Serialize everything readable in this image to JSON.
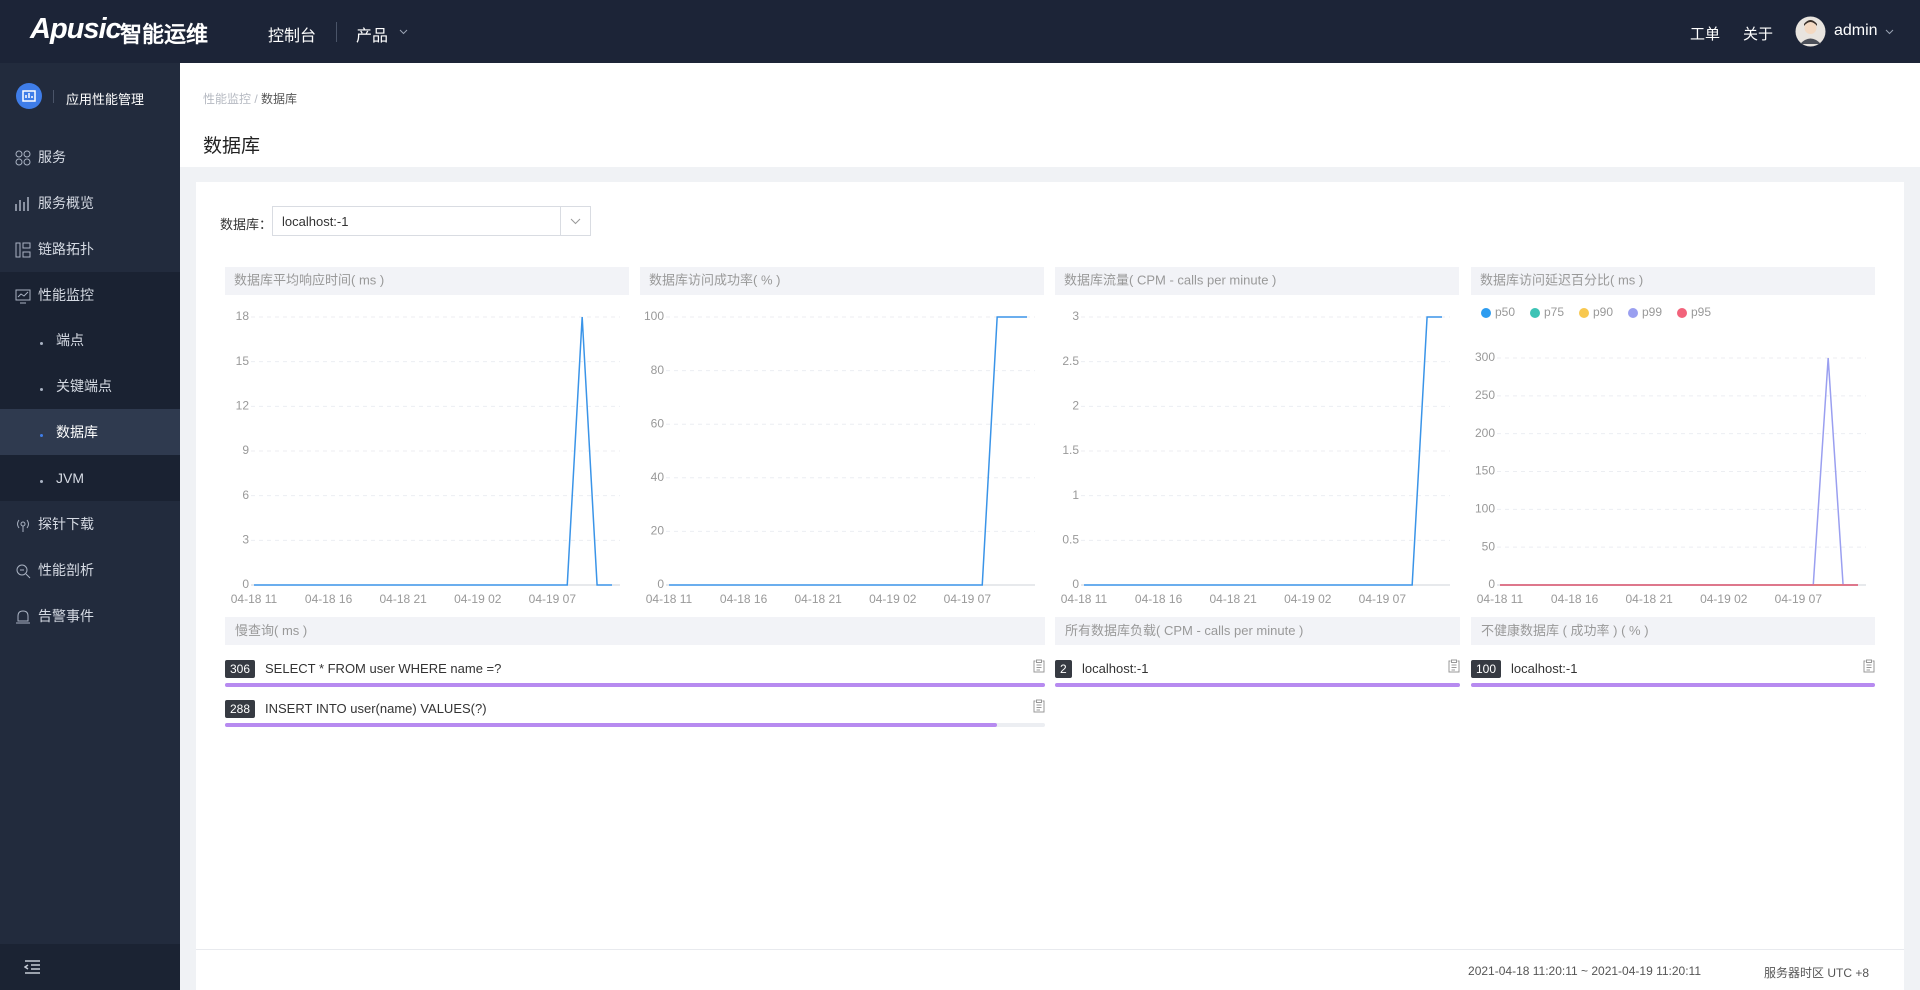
{
  "header": {
    "logo": "Apusic",
    "logo_suffix": "智能运维",
    "nav": [
      "控制台",
      "产品"
    ],
    "links": [
      "工单",
      "关于"
    ],
    "user": "admin"
  },
  "sidebar": {
    "title": "应用性能管理",
    "items": [
      "服务",
      "服务概览",
      "链路拓扑",
      "性能监控",
      "端点",
      "关键端点",
      "数据库",
      "JVM",
      "探针下载",
      "性能剖析",
      "告警事件"
    ]
  },
  "breadcrumb": {
    "parent": "性能监控",
    "separator": "/",
    "current": "数据库"
  },
  "page_title": "数据库",
  "filter": {
    "label": "数据库：",
    "value": "localhost:-1"
  },
  "charts": [
    {
      "type": "line",
      "title": "数据库平均响应时间( ms )",
      "categories": [
        "04-18 11",
        null,
        null,
        null,
        null,
        "04-18 16",
        null,
        null,
        null,
        null,
        "04-18 21",
        null,
        null,
        null,
        null,
        "04-19 02",
        null,
        null,
        null,
        null,
        "04-19 07",
        null,
        null,
        null,
        null
      ],
      "values": [
        0,
        0,
        0,
        0,
        0,
        0,
        0,
        0,
        0,
        0,
        0,
        0,
        0,
        0,
        0,
        0,
        0,
        0,
        0,
        0,
        0,
        0,
        18,
        0,
        0
      ],
      "color": "#3a94e8",
      "ylim": [
        0,
        18
      ],
      "yticks": [
        0,
        3,
        6,
        9,
        12,
        15,
        18
      ],
      "grid": true
    },
    {
      "type": "line",
      "title": "数据库访问成功率( % )",
      "categories": [
        "04-18 11",
        null,
        null,
        null,
        null,
        "04-18 16",
        null,
        null,
        null,
        null,
        "04-18 21",
        null,
        null,
        null,
        null,
        "04-19 02",
        null,
        null,
        null,
        null,
        "04-19 07",
        null,
        null,
        null,
        null
      ],
      "values": [
        0,
        0,
        0,
        0,
        0,
        0,
        0,
        0,
        0,
        0,
        0,
        0,
        0,
        0,
        0,
        0,
        0,
        0,
        0,
        0,
        0,
        0,
        100,
        100,
        100
      ],
      "color": "#3a94e8",
      "ylim": [
        0,
        100
      ],
      "yticks": [
        0,
        20,
        40,
        60,
        80,
        100
      ],
      "grid": true
    },
    {
      "type": "line",
      "title": "数据库流量( CPM - calls per minute )",
      "categories": [
        "04-18 11",
        null,
        null,
        null,
        null,
        "04-18 16",
        null,
        null,
        null,
        null,
        "04-18 21",
        null,
        null,
        null,
        null,
        "04-19 02",
        null,
        null,
        null,
        null,
        "04-19 07",
        null,
        null,
        null,
        null
      ],
      "values": [
        0,
        0,
        0,
        0,
        0,
        0,
        0,
        0,
        0,
        0,
        0,
        0,
        0,
        0,
        0,
        0,
        0,
        0,
        0,
        0,
        0,
        0,
        0,
        3,
        3
      ],
      "color": "#3a94e8",
      "ylim": [
        0,
        3
      ],
      "yticks": [
        0,
        0.5,
        1,
        1.5,
        2,
        2.5,
        3
      ],
      "grid": true
    },
    {
      "type": "line",
      "title": "数据库访问延迟百分比( ms )",
      "categories": [
        "04-18 11",
        null,
        null,
        null,
        null,
        "04-18 16",
        null,
        null,
        null,
        null,
        "04-18 21",
        null,
        null,
        null,
        null,
        "04-19 02",
        null,
        null,
        null,
        null,
        "04-19 07",
        null,
        null,
        null,
        null
      ],
      "series": [
        {
          "name": "p50",
          "color": "#2d9cf0",
          "values": [
            0,
            0,
            0,
            0,
            0,
            0,
            0,
            0,
            0,
            0,
            0,
            0,
            0,
            0,
            0,
            0,
            0,
            0,
            0,
            0,
            0,
            0,
            0,
            0,
            0
          ]
        },
        {
          "name": "p75",
          "color": "#3cc3b5",
          "values": [
            0,
            0,
            0,
            0,
            0,
            0,
            0,
            0,
            0,
            0,
            0,
            0,
            0,
            0,
            0,
            0,
            0,
            0,
            0,
            0,
            0,
            0,
            0,
            0,
            0
          ]
        },
        {
          "name": "p90",
          "color": "#f8c84f",
          "values": [
            0,
            0,
            0,
            0,
            0,
            0,
            0,
            0,
            0,
            0,
            0,
            0,
            0,
            0,
            0,
            0,
            0,
            0,
            0,
            0,
            0,
            0,
            0,
            0,
            0
          ]
        },
        {
          "name": "p99",
          "color": "#9a9ff0",
          "values": [
            0,
            0,
            0,
            0,
            0,
            0,
            0,
            0,
            0,
            0,
            0,
            0,
            0,
            0,
            0,
            0,
            0,
            0,
            0,
            0,
            0,
            0,
            300,
            0,
            0
          ]
        },
        {
          "name": "p95",
          "color": "#f2637b",
          "values": [
            0,
            0,
            0,
            0,
            0,
            0,
            0,
            0,
            0,
            0,
            0,
            0,
            0,
            0,
            0,
            0,
            0,
            0,
            0,
            0,
            0,
            0,
            0,
            0,
            0
          ]
        }
      ],
      "ylim": [
        0,
        300
      ],
      "yticks": [
        0,
        50,
        100,
        150,
        200,
        250,
        300
      ],
      "grid": true,
      "legend": "top-left"
    }
  ],
  "lists": [
    {
      "title": "慢查询( ms )",
      "color": "#b78af0",
      "items": [
        {
          "value": 306,
          "label": "SELECT * FROM user WHERE name =?"
        },
        {
          "value": 288,
          "label": "INSERT INTO user(name) VALUES(?)"
        }
      ]
    },
    {
      "title": "所有数据库负载( CPM - calls per minute )",
      "color": "#b78af0",
      "items": [
        {
          "value": 2,
          "label": "localhost:-1"
        }
      ]
    },
    {
      "title": "不健康数据库 ( 成功率 ) ( % )",
      "color": "#b78af0",
      "items": [
        {
          "value": 100,
          "label": "localhost:-1"
        }
      ]
    }
  ],
  "footer": {
    "range": "2021-04-18 11:20:11 ~ 2021-04-19 11:20:11",
    "timezone": "服务器时区 UTC +8"
  }
}
